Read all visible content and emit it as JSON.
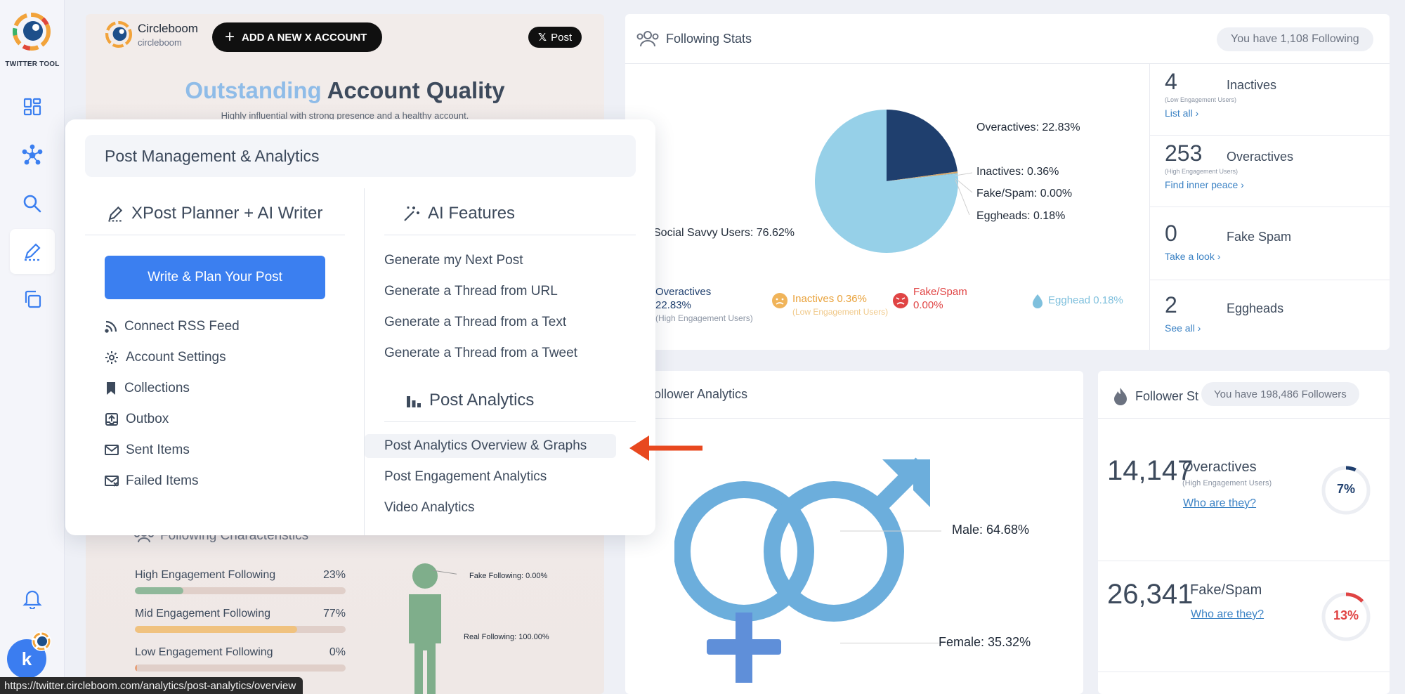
{
  "rail": {
    "logo_text": "TWITTER TOOL",
    "avatar_letter": "k",
    "items": [
      "dashboard-icon",
      "network-icon",
      "search-icon",
      "post-planner-icon",
      "copy-icon"
    ]
  },
  "account": {
    "name": "Circleboom",
    "handle": "circleboom",
    "add_account_label": "ADD A NEW X ACCOUNT",
    "x_post_label": "Post"
  },
  "quality": {
    "highlight": "Outstanding",
    "rest": "Account Quality",
    "subtitle": "Highly influential with strong presence and a healthy account."
  },
  "following_characteristics": {
    "title": "Following Characteristics",
    "bars": [
      {
        "label": "High Engagement Following",
        "value": "23%",
        "pct": 23,
        "color": "#8fb89a"
      },
      {
        "label": "Mid Engagement Following",
        "value": "77%",
        "pct": 77,
        "color": "#f0c27f"
      },
      {
        "label": "Low Engagement Following",
        "value": "0%",
        "pct": 1,
        "color": "#e6a07a"
      }
    ],
    "fake_label": "Fake Following: 0.00%",
    "real_label": "Real Following: 100.00%"
  },
  "following_stats": {
    "title": "Following Stats",
    "pill": "You have 1,108 Following",
    "pie_labels": {
      "overactives": "Overactives: 22.83%",
      "inactives": "Inactives: 0.36%",
      "fake": "Fake/Spam: 0.00%",
      "eggheads": "Eggheads: 0.18%",
      "social": "Social Savvy Users: 76.62%"
    },
    "legend": {
      "overactives_name": "Overactives",
      "overactives_val": "22.83%",
      "overactives_sub": "(High Engagement Users)",
      "inactives_name": "Inactives 0.36%",
      "inactives_sub": "(Low Engagement Users)",
      "fake_name": "Fake/Spam",
      "fake_val": "0.00%",
      "egghead": "Egghead 0.18%"
    },
    "side": [
      {
        "num": "4",
        "name": "Inactives",
        "sub": "(Low Engagement Users)",
        "link": "List all ›"
      },
      {
        "num": "253",
        "name": "Overactives",
        "sub": "(High Engagement Users)",
        "link": "Find inner peace ›"
      },
      {
        "num": "0",
        "name": "Fake Spam",
        "sub": "",
        "link": "Take a look ›"
      },
      {
        "num": "2",
        "name": "Eggheads",
        "sub": "",
        "link": "See all ›"
      }
    ]
  },
  "chart_data": {
    "type": "pie",
    "categories": [
      "Social Savvy Users",
      "Overactives",
      "Inactives",
      "Fake/Spam",
      "Eggheads"
    ],
    "values": [
      76.62,
      22.83,
      0.36,
      0.0,
      0.18
    ],
    "colors": [
      "#96d0e8",
      "#1f3f6e",
      "#d8a86a",
      "#e04444",
      "#7fc0dd"
    ]
  },
  "follower_analytics": {
    "title": "Follower Analytics",
    "male": "Male: 64.68%",
    "female": "Female: 35.32%"
  },
  "follower_stats": {
    "title": "Follower St",
    "pill": "You have 198,486 Followers",
    "items": [
      {
        "num": "14,147",
        "name": "Overactives",
        "sub": "(High Engagement Users)",
        "link": "Who are they?",
        "pct": "7%",
        "pct_value": 7,
        "color": "#1f3f6e"
      },
      {
        "num": "26,341",
        "name": "Fake/Spam",
        "sub": "",
        "link": "Who are they?",
        "pct": "13%",
        "pct_value": 13,
        "color": "#e04444"
      }
    ]
  },
  "popup": {
    "title": "Post Management & Analytics",
    "left_title": "XPost Planner + AI Writer",
    "write_btn": "Write & Plan Your Post",
    "left_items": [
      {
        "label": "Connect RSS Feed",
        "icon": "rss-icon"
      },
      {
        "label": "Account Settings",
        "icon": "gear-icon"
      },
      {
        "label": "Collections",
        "icon": "bookmark-icon"
      },
      {
        "label": "Outbox",
        "icon": "outbox-icon"
      },
      {
        "label": "Sent Items",
        "icon": "sent-mail-icon"
      },
      {
        "label": "Failed Items",
        "icon": "failed-mail-icon"
      }
    ],
    "ai_title": "AI Features",
    "ai_items": [
      "Generate my Next Post",
      "Generate a Thread from URL",
      "Generate a Thread from a Text",
      "Generate a Thread from a Tweet"
    ],
    "analytics_title": "Post Analytics",
    "analytics_items": [
      "Post Analytics Overview & Graphs",
      "Post Engagement Analytics",
      "Video Analytics"
    ]
  },
  "status_url": "https://twitter.circleboom.com/analytics/post-analytics/overview"
}
